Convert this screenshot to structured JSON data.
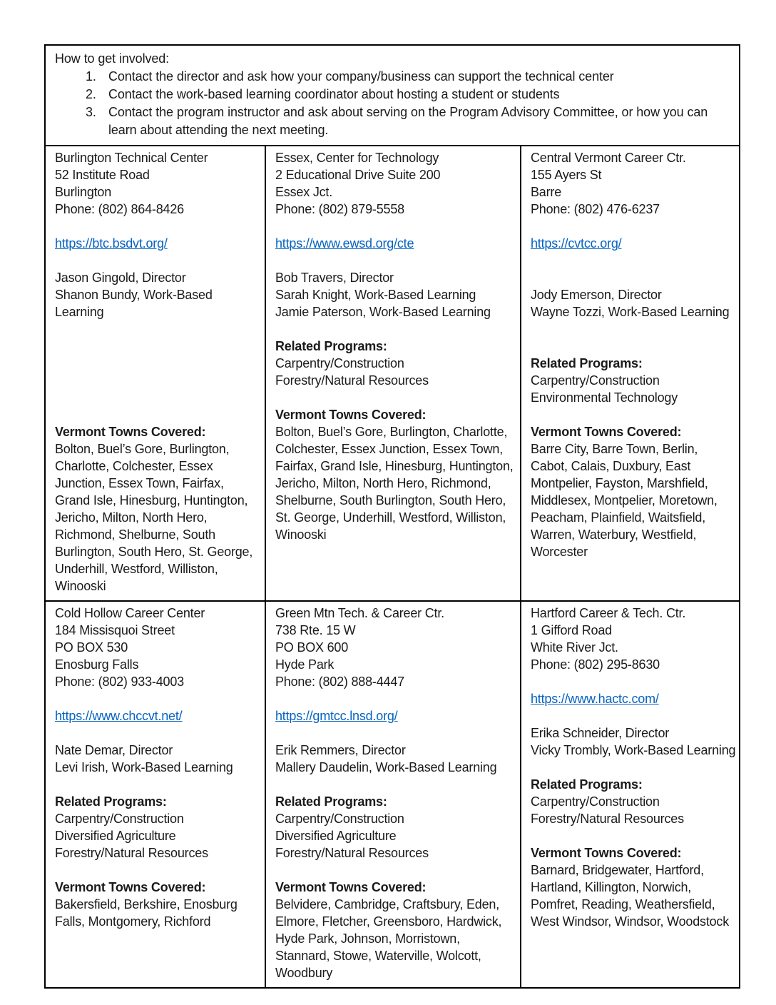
{
  "theme": {
    "text_color": "#1a1a1a",
    "link_color": "#0563C1",
    "border_color": "#000000",
    "background_color": "#ffffff"
  },
  "intro": {
    "title": "How to get involved:",
    "items": [
      "Contact the director and ask how your company/business can support the technical center",
      "Contact the work-based learning coordinator about hosting a student or students",
      "Contact the program instructor and ask about serving on the Program Advisory Committee, or how you can learn about attending the next meeting."
    ]
  },
  "centers": [
    {
      "id": "burlington-technical-center",
      "paragraphs": [
        {
          "n": "center-name",
          "s": "text",
          "t": "Burlington Technical Center"
        },
        {
          "n": "address-line",
          "s": "text",
          "t": "52 Institute Road"
        },
        {
          "n": "address-line",
          "s": "text",
          "t": "Burlington"
        },
        {
          "n": "center-phone",
          "s": "text",
          "t": "Phone: (802) 864-8426"
        },
        {
          "n": "blank",
          "s": "blank",
          "t": ""
        },
        {
          "n": "center-website-link",
          "s": "link",
          "t": "https://btc.bsdvt.org/"
        },
        {
          "n": "blank",
          "s": "blank",
          "t": ""
        },
        {
          "n": "staff-line",
          "s": "text",
          "t": "Jason Gingold, Director"
        },
        {
          "n": "staff-line",
          "s": "text",
          "t": "Shanon Bundy, Work-Based Learning"
        },
        {
          "n": "blank",
          "s": "blank",
          "t": ""
        },
        {
          "n": "blank",
          "s": "blank",
          "t": ""
        },
        {
          "n": "blank",
          "s": "blank",
          "t": ""
        },
        {
          "n": "blank",
          "s": "blank",
          "t": ""
        },
        {
          "n": "blank",
          "s": "blank",
          "t": ""
        },
        {
          "n": "blank",
          "s": "blank",
          "t": ""
        },
        {
          "n": "towns-heading",
          "s": "bold",
          "t": "Vermont Towns Covered:"
        },
        {
          "n": "towns-list",
          "s": "text",
          "t": "Bolton, Buel’s Gore, Burlington, Charlotte, Colchester, Essex Junction, Essex Town, Fairfax, Grand Isle, Hinesburg, Huntington, Jericho, Milton, North Hero, Richmond, Shelburne, South Burlington, South Hero, St. George, Underhill, Westford, Williston, Winooski"
        }
      ]
    },
    {
      "id": "essex-center-for-technology",
      "paragraphs": [
        {
          "n": "center-name",
          "s": "text",
          "t": "Essex, Center for Technology"
        },
        {
          "n": "address-line",
          "s": "text",
          "t": "2 Educational Drive Suite 200"
        },
        {
          "n": "address-line",
          "s": "text",
          "t": "Essex Jct."
        },
        {
          "n": "center-phone",
          "s": "text",
          "t": "Phone: (802) 879-5558"
        },
        {
          "n": "blank",
          "s": "blank",
          "t": ""
        },
        {
          "n": "center-website-link",
          "s": "link",
          "t": "https://www.ewsd.org/cte"
        },
        {
          "n": "blank",
          "s": "blank",
          "t": ""
        },
        {
          "n": "staff-line",
          "s": "text",
          "t": "Bob Travers, Director"
        },
        {
          "n": "staff-line",
          "s": "text",
          "t": "Sarah Knight, Work-Based Learning"
        },
        {
          "n": "staff-line",
          "s": "text",
          "t": "Jamie Paterson, Work-Based Learning"
        },
        {
          "n": "blank",
          "s": "blank",
          "t": ""
        },
        {
          "n": "related-programs-heading",
          "s": "bold",
          "t": "Related Programs:"
        },
        {
          "n": "program-line",
          "s": "text",
          "t": "Carpentry/Construction"
        },
        {
          "n": "program-line",
          "s": "text",
          "t": "Forestry/Natural Resources"
        },
        {
          "n": "blank",
          "s": "blank",
          "t": ""
        },
        {
          "n": "towns-heading",
          "s": "bold",
          "t": "Vermont Towns Covered:"
        },
        {
          "n": "towns-list",
          "s": "text",
          "t": "Bolton, Buel’s Gore, Burlington, Charlotte, Colchester, Essex Junction, Essex Town, Fairfax, Grand Isle, Hinesburg, Huntington, Jericho, Milton, North Hero, Richmond, Shelburne, South Burlington, South Hero, St. George, Underhill, Westford, Williston, Winooski"
        }
      ]
    },
    {
      "id": "central-vermont-career-ctr",
      "paragraphs": [
        {
          "n": "center-name",
          "s": "text",
          "t": "Central Vermont Career Ctr."
        },
        {
          "n": "address-line",
          "s": "text",
          "t": "155 Ayers St"
        },
        {
          "n": "address-line",
          "s": "text",
          "t": "Barre"
        },
        {
          "n": "center-phone",
          "s": "text",
          "t": "Phone: (802) 476-6237"
        },
        {
          "n": "blank",
          "s": "blank",
          "t": ""
        },
        {
          "n": "center-website-link",
          "s": "link",
          "t": "https://cvtcc.org/"
        },
        {
          "n": "blank",
          "s": "blank",
          "t": ""
        },
        {
          "n": "blank",
          "s": "blank",
          "t": ""
        },
        {
          "n": "staff-line",
          "s": "text",
          "t": "Jody Emerson, Director"
        },
        {
          "n": "staff-line",
          "s": "text",
          "t": "Wayne Tozzi, Work-Based Learning"
        },
        {
          "n": "blank",
          "s": "blank",
          "t": ""
        },
        {
          "n": "blank",
          "s": "blank",
          "t": ""
        },
        {
          "n": "related-programs-heading",
          "s": "bold",
          "t": "Related Programs:"
        },
        {
          "n": "program-line",
          "s": "text",
          "t": "Carpentry/Construction"
        },
        {
          "n": "program-line",
          "s": "text",
          "t": "Environmental Technology"
        },
        {
          "n": "blank",
          "s": "blank",
          "t": ""
        },
        {
          "n": "towns-heading",
          "s": "bold",
          "t": "Vermont Towns Covered:"
        },
        {
          "n": "towns-list",
          "s": "text",
          "t": "Barre City, Barre Town, Berlin, Cabot, Calais, Duxbury, East Montpelier, Fayston, Marshfield, Middlesex, Montpelier, Moretown, Peacham, Plainfield, Waitsfield, Warren, Waterbury, Westfield, Worcester"
        }
      ]
    },
    {
      "id": "cold-hollow-career-center",
      "paragraphs": [
        {
          "n": "center-name",
          "s": "text",
          "t": "Cold Hollow Career Center"
        },
        {
          "n": "address-line",
          "s": "text",
          "t": "184 Missisquoi Street"
        },
        {
          "n": "address-line",
          "s": "text",
          "t": "PO BOX 530"
        },
        {
          "n": "address-line",
          "s": "text",
          "t": "Enosburg Falls"
        },
        {
          "n": "center-phone",
          "s": "text",
          "t": "Phone: (802) 933-4003"
        },
        {
          "n": "blank",
          "s": "blank",
          "t": ""
        },
        {
          "n": "center-website-link",
          "s": "link",
          "t": "https://www.chccvt.net/"
        },
        {
          "n": "blank",
          "s": "blank",
          "t": ""
        },
        {
          "n": "staff-line",
          "s": "text",
          "t": "Nate Demar, Director"
        },
        {
          "n": "staff-line",
          "s": "text",
          "t": "Levi Irish, Work-Based Learning"
        },
        {
          "n": "blank",
          "s": "blank",
          "t": ""
        },
        {
          "n": "related-programs-heading",
          "s": "bold",
          "t": "Related Programs:"
        },
        {
          "n": "program-line",
          "s": "text",
          "t": "Carpentry/Construction"
        },
        {
          "n": "program-line",
          "s": "text",
          "t": "Diversified Agriculture"
        },
        {
          "n": "program-line",
          "s": "text",
          "t": "Forestry/Natural Resources"
        },
        {
          "n": "blank",
          "s": "blank",
          "t": ""
        },
        {
          "n": "towns-heading",
          "s": "bold",
          "t": "Vermont Towns Covered:"
        },
        {
          "n": "towns-list",
          "s": "text",
          "t": "Bakersfield, Berkshire, Enosburg Falls, Montgomery, Richford"
        }
      ]
    },
    {
      "id": "green-mtn-tech-career-ctr",
      "paragraphs": [
        {
          "n": "center-name",
          "s": "text",
          "t": "Green Mtn Tech. & Career Ctr."
        },
        {
          "n": "address-line",
          "s": "text",
          "t": "738 Rte. 15 W"
        },
        {
          "n": "address-line",
          "s": "text",
          "t": "PO BOX 600"
        },
        {
          "n": "address-line",
          "s": "text",
          "t": "Hyde Park"
        },
        {
          "n": "center-phone",
          "s": "text",
          "t": "Phone: (802) 888-4447"
        },
        {
          "n": "blank",
          "s": "blank",
          "t": ""
        },
        {
          "n": "center-website-link",
          "s": "link",
          "t": "https://gmtcc.lnsd.org/"
        },
        {
          "n": "blank",
          "s": "blank",
          "t": ""
        },
        {
          "n": "staff-line",
          "s": "text",
          "t": "Erik Remmers, Director"
        },
        {
          "n": "staff-line",
          "s": "text",
          "t": "Mallery Daudelin, Work-Based Learning"
        },
        {
          "n": "blank",
          "s": "blank",
          "t": ""
        },
        {
          "n": "related-programs-heading",
          "s": "bold",
          "t": "Related Programs:"
        },
        {
          "n": "program-line",
          "s": "text",
          "t": "Carpentry/Construction"
        },
        {
          "n": "program-line",
          "s": "text",
          "t": "Diversified Agriculture"
        },
        {
          "n": "program-line",
          "s": "text",
          "t": "Forestry/Natural Resources"
        },
        {
          "n": "blank",
          "s": "blank",
          "t": ""
        },
        {
          "n": "towns-heading",
          "s": "bold",
          "t": "Vermont Towns Covered:"
        },
        {
          "n": "towns-list",
          "s": "text",
          "t": "Belvidere, Cambridge, Craftsbury, Eden, Elmore, Fletcher, Greensboro, Hardwick, Hyde Park, Johnson, Morristown, Stannard, Stowe, Waterville, Wolcott, Woodbury"
        }
      ]
    },
    {
      "id": "hartford-career-tech-ctr",
      "paragraphs": [
        {
          "n": "center-name",
          "s": "text",
          "t": "Hartford Career & Tech. Ctr."
        },
        {
          "n": "address-line",
          "s": "text",
          "t": "1 Gifford Road"
        },
        {
          "n": "address-line",
          "s": "text",
          "t": "White River Jct."
        },
        {
          "n": "center-phone",
          "s": "text",
          "t": "Phone: (802) 295-8630"
        },
        {
          "n": "blank",
          "s": "blank",
          "t": ""
        },
        {
          "n": "center-website-link",
          "s": "link",
          "t": "https://www.hactc.com/"
        },
        {
          "n": "blank",
          "s": "blank",
          "t": ""
        },
        {
          "n": "staff-line",
          "s": "text",
          "t": "Erika Schneider, Director"
        },
        {
          "n": "staff-line",
          "s": "text",
          "t": "Vicky Trombly, Work-Based Learning"
        },
        {
          "n": "blank",
          "s": "blank",
          "t": ""
        },
        {
          "n": "related-programs-heading",
          "s": "bold",
          "t": "Related Programs:"
        },
        {
          "n": "program-line",
          "s": "text",
          "t": "Carpentry/Construction"
        },
        {
          "n": "program-line",
          "s": "text",
          "t": "Forestry/Natural Resources"
        },
        {
          "n": "blank",
          "s": "blank",
          "t": ""
        },
        {
          "n": "towns-heading",
          "s": "bold",
          "t": "Vermont Towns Covered:"
        },
        {
          "n": "towns-list",
          "s": "text",
          "t": "Barnard, Bridgewater, Hartford, Hartland, Killington, Norwich, Pomfret, Reading, Weathersfield, West Windsor, Windsor, Woodstock"
        }
      ]
    }
  ]
}
